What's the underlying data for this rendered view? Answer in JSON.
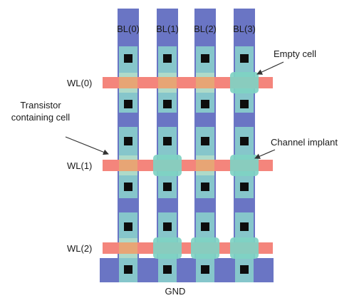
{
  "diagram": {
    "bitlines": [
      "BL(0)",
      "BL(1)",
      "BL(2)",
      "BL(3)"
    ],
    "wordlines": [
      "WL(0)",
      "WL(1)",
      "WL(2)"
    ],
    "ground_label": "GND",
    "annotations": {
      "empty_cell": "Empty cell",
      "transistor_line1": "Transistor",
      "transistor_line2": "containing cell",
      "channel_implant": "Channel implant"
    },
    "colors": {
      "bitline": "#6A75C4",
      "diffusion": "#86C6CB",
      "wordline": "#F4857C",
      "channel_implant": "#7FD3C3",
      "transistor_gate": "#E7A575",
      "contact": "#0D0D0D"
    },
    "cell_states": {
      "WL(0)": [
        "transistor",
        "transistor",
        "transistor",
        "implant"
      ],
      "WL(1)": [
        "transistor",
        "implant",
        "transistor",
        "implant"
      ],
      "WL(2)": [
        "transistor",
        "implant",
        "implant",
        "implant"
      ]
    }
  }
}
